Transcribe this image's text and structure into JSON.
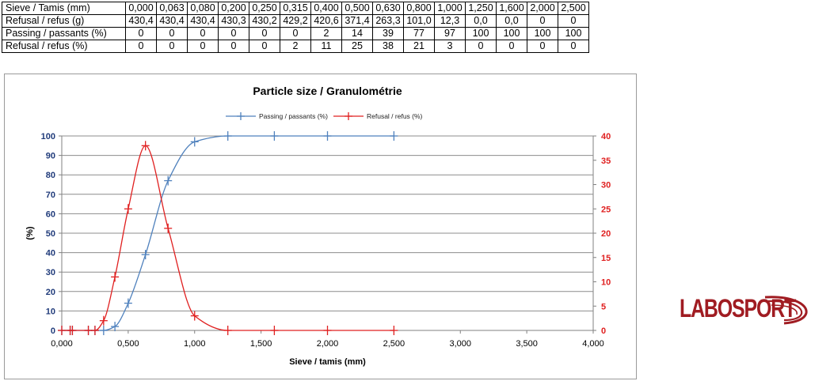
{
  "table": {
    "rows": [
      {
        "label": "Sieve / Tamis (mm)",
        "cells": [
          "0,000",
          "0,063",
          "0,080",
          "0,200",
          "0,250",
          "0,315",
          "0,400",
          "0,500",
          "0,630",
          "0,800",
          "1,000",
          "1,250",
          "1,600",
          "2,000",
          "2,500"
        ]
      },
      {
        "label": "Refusal / refus (g)",
        "cells": [
          "430,4",
          "430,4",
          "430,4",
          "430,3",
          "430,2",
          "429,2",
          "420,6",
          "371,4",
          "263,3",
          "101,0",
          "12,3",
          "0,0",
          "0,0",
          "0",
          "0"
        ]
      },
      {
        "label": "Passing / passants (%)",
        "cells": [
          "0",
          "0",
          "0",
          "0",
          "0",
          "0",
          "2",
          "14",
          "39",
          "77",
          "97",
          "100",
          "100",
          "100",
          "100"
        ]
      },
      {
        "label": "Refusal / refus (%)",
        "cells": [
          "0",
          "0",
          "0",
          "0",
          "0",
          "2",
          "11",
          "25",
          "38",
          "21",
          "3",
          "0",
          "0",
          "0",
          "0"
        ]
      }
    ]
  },
  "chart_data": {
    "type": "line",
    "title": "Particle size / Granulométrie",
    "xlabel": "Sieve / tamis (mm)",
    "ylabel": "(%)",
    "y2label": "",
    "xlim": [
      0,
      4
    ],
    "ylim": [
      0,
      100
    ],
    "y2lim": [
      0,
      40
    ],
    "x_ticks": [
      "0,000",
      "0,500",
      "1,000",
      "1,500",
      "2,000",
      "2,500",
      "3,000",
      "3,500",
      "4,000"
    ],
    "y_ticks": [
      "0",
      "10",
      "20",
      "30",
      "40",
      "50",
      "60",
      "70",
      "80",
      "90",
      "100"
    ],
    "y2_ticks": [
      "0",
      "5",
      "10",
      "15",
      "20",
      "25",
      "30",
      "35",
      "40"
    ],
    "grid": true,
    "legend": "top",
    "series": [
      {
        "name": "Passing / passants (%)",
        "axis": "left",
        "color": "#4f81bd",
        "x": [
          0,
          0.063,
          0.08,
          0.2,
          0.25,
          0.315,
          0.4,
          0.5,
          0.63,
          0.8,
          1.0,
          1.25,
          1.6,
          2.0,
          2.5
        ],
        "y": [
          0,
          0,
          0,
          0,
          0,
          0,
          2,
          14,
          39,
          77,
          97,
          100,
          100,
          100,
          100
        ]
      },
      {
        "name": "Refusal / refus (%)",
        "axis": "right",
        "color": "#e02020",
        "x": [
          0,
          0.063,
          0.08,
          0.2,
          0.25,
          0.315,
          0.4,
          0.5,
          0.63,
          0.8,
          1.0,
          1.25,
          1.6,
          2.0,
          2.5
        ],
        "y": [
          0,
          0,
          0,
          0,
          0,
          2,
          11,
          25,
          38,
          21,
          3,
          0,
          0,
          0,
          0
        ]
      }
    ]
  },
  "logo": {
    "text": "LABOSPORT",
    "color": "#a01c22"
  }
}
